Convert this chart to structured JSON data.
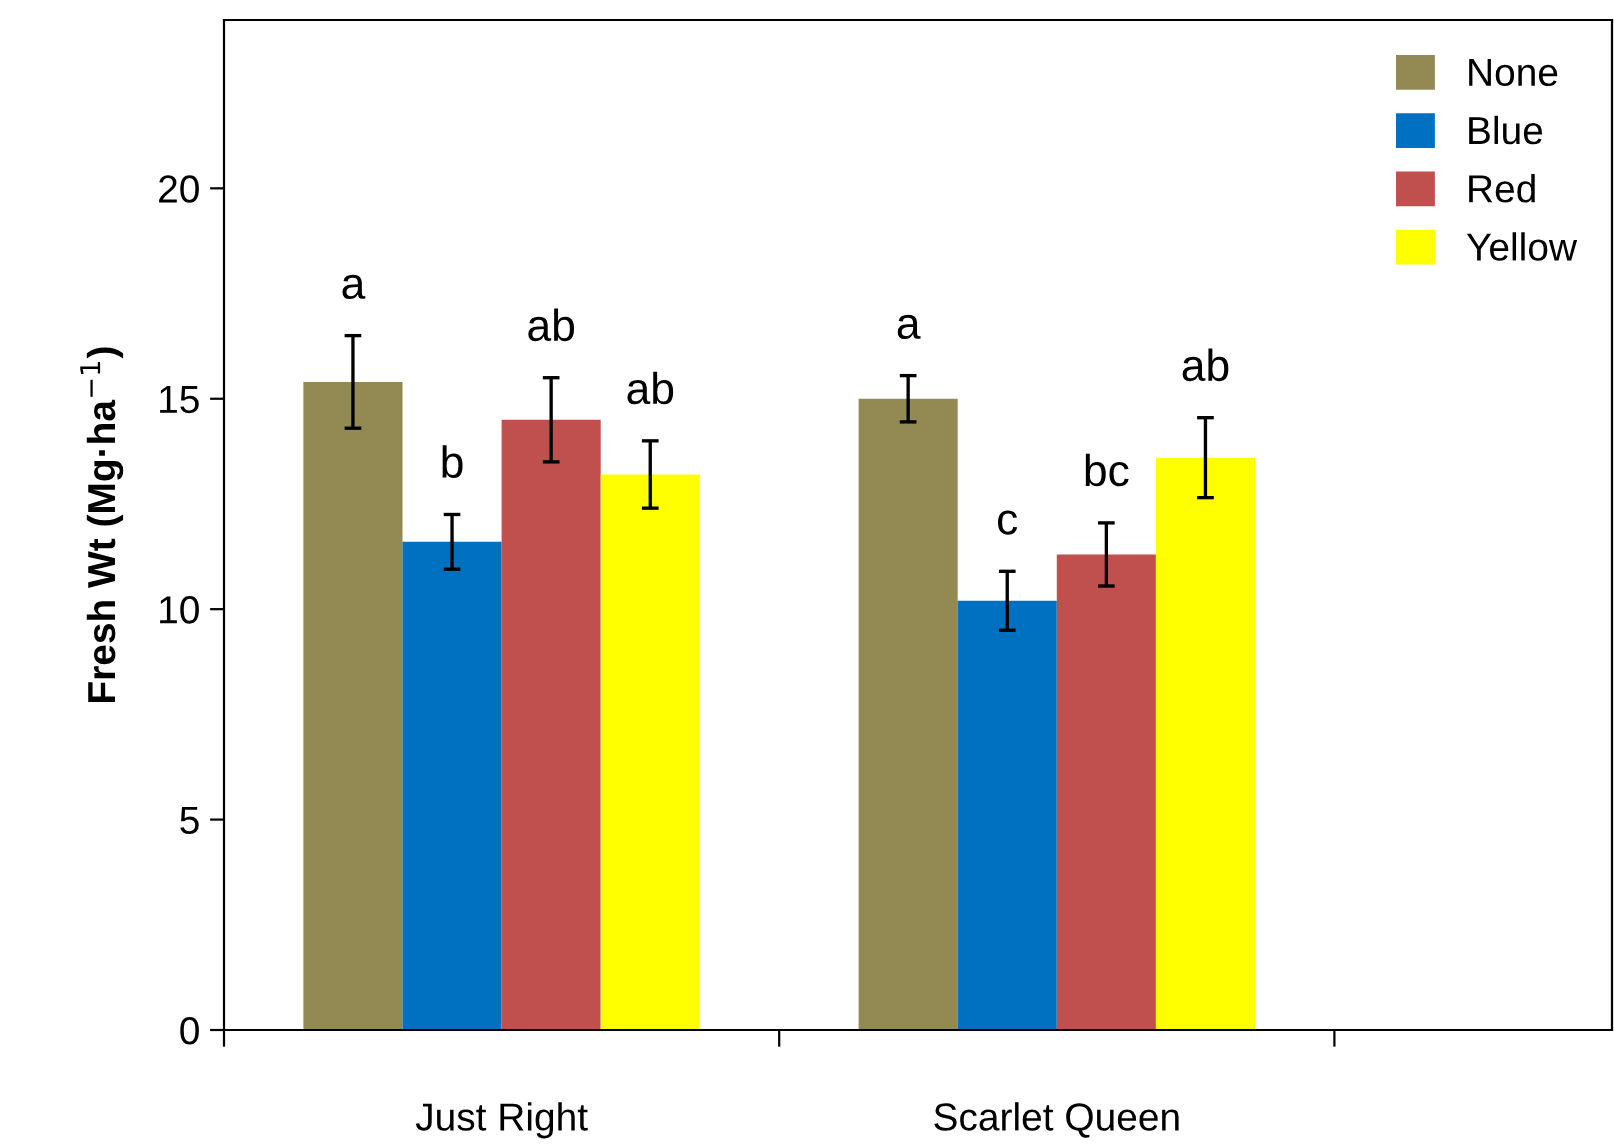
{
  "chart_data": {
    "type": "bar",
    "ylabel": "Fresh Wt (Mg·ha$^{−1}$)",
    "categories": [
      "Just Right",
      "Scarlet Queen"
    ],
    "series": [
      {
        "name": "None",
        "color": "#938953",
        "values": [
          15.4,
          15.0
        ],
        "errors": [
          1.1,
          0.55
        ],
        "value_labels": [
          "a",
          "a"
        ]
      },
      {
        "name": "Blue",
        "color": "#0070c0",
        "values": [
          11.6,
          10.2
        ],
        "errors": [
          0.65,
          0.7
        ],
        "value_labels": [
          "b",
          "c"
        ]
      },
      {
        "name": "Red",
        "color": "#c0504d",
        "values": [
          14.5,
          11.3
        ],
        "errors": [
          1.0,
          0.75
        ],
        "value_labels": [
          "ab",
          "bc"
        ]
      },
      {
        "name": "Yellow",
        "color": "#ffff00",
        "values": [
          13.2,
          13.6
        ],
        "errors": [
          0.8,
          0.95
        ],
        "value_labels": [
          "ab",
          "ab"
        ]
      }
    ],
    "ylim": [
      0,
      24
    ],
    "yticks": [
      0,
      5,
      10,
      15,
      20
    ],
    "legend": "top right",
    "grid": false
  }
}
